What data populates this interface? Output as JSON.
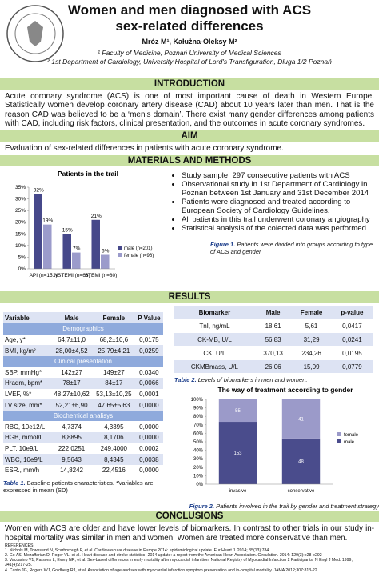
{
  "header": {
    "title_lines": [
      "Women and men diagnosed with ACS",
      "sex-related differences"
    ],
    "authors": "Mróz M¹, Kałużna-Oleksy M²",
    "affiliations": [
      "¹ Faculty of Medicine, Poznań University of Medical Sciences",
      "² 1st Department of Cardiology, University Hospital of Lord's Transfiguration, Długa 1/2 Poznań"
    ]
  },
  "introduction": {
    "heading": "INTRODUCTION",
    "text": "Acute coronary syndrome (ACS) is one of most important cause of death in Western Europe. Statistically women develop coronary artery disease (CAD) about 10 years later than men. That is the reason CAD was believed to be a ‘men's domain’. There exist many gender differences among patients with CAD, including risk factors, clinical presentation, and the outcomes in acute coronary syndromes."
  },
  "aim": {
    "heading": "AIM",
    "text": "Evaluation of sex-related differences in patients with acute coronary syndrome."
  },
  "methods": {
    "heading": "MATERIALS AND METHODS",
    "bullets": [
      "Study sample: 297 consecutive patients with ACS",
      "Observational study in 1st Department of Cardiology in Poznan between 1st January and 31st December 2014",
      "Patients were diagnosed and treated according to European Society of Cardiology Guidelines.",
      "All patients in this trail underwent coronary angiography",
      "Statistical analysis of the colected data was performed"
    ],
    "caption_label": "Figure 1.",
    "caption": "Patients were divided into groups according to type of ACS and gender"
  },
  "results": {
    "heading": "RESULTS",
    "table1": {
      "columns": [
        "Variable",
        "Male",
        "Female",
        "P Value"
      ],
      "rows": [
        [
          "Demographics"
        ],
        [
          "Age, y*",
          "64,7±11,0",
          "68,2±10,6",
          "0,0175"
        ],
        [
          "BMI, kg/m²",
          "28,00±4,52",
          "25,79±4,21",
          "0,0259"
        ],
        [
          "Clinical presentation"
        ],
        [
          "SBP, mmHg*",
          "142±27",
          "149±27",
          "0,0340"
        ],
        [
          "Hradm, bpm*",
          "78±17",
          "84±17",
          "0,0066"
        ],
        [
          "LVEF, %*",
          "48,27±10,62",
          "53,13±10,25",
          "0,0001"
        ],
        [
          "LV size, mm*",
          "52,21±6,90",
          "47,65±5,63",
          "0,0000"
        ],
        [
          "Biochemical analisys"
        ],
        [
          "RBC, 10e12/L",
          "4,7374",
          "4,3395",
          "0,0000"
        ],
        [
          "HGB, mmol/L",
          "8,8895",
          "8,1706",
          "0,0000"
        ],
        [
          "PLT, 10e9/L",
          "222,0251",
          "249,4000",
          "0,0002"
        ],
        [
          "WBC, 10e9/L",
          "9,5643",
          "8,4345",
          "0,0038"
        ],
        [
          "ESR., mm/h",
          "14,8242",
          "22,4516",
          "0,0000"
        ]
      ],
      "caption_label": "Table 1.",
      "caption": "Baseline patients characteristics. *Variables are expressed in mean (SD)"
    },
    "table2": {
      "columns": [
        "Biomarker",
        "Male",
        "Female",
        "p-value"
      ],
      "rows": [
        [
          "TnI, ng/mL",
          "18,61",
          "5,61",
          "0,0417"
        ],
        [
          "CK-MB, U/L",
          "56,83",
          "31,29",
          "0,0241"
        ],
        [
          "CK, U/L",
          "370,13",
          "234,26",
          "0,0195"
        ],
        [
          "CKMBmass, U/L",
          "26,06",
          "15,09",
          "0,0779"
        ]
      ],
      "caption_label": "Table 2.",
      "caption": "Levels of biomarkers in men and women."
    },
    "figure2_caption_label": "Figure 2.",
    "figure2_caption": "Patients involved in the trail by gender and treatment strategy"
  },
  "conclusions": {
    "heading": "CONCLUSIONS",
    "text": "Women with ACS are older and have lower levels of biomarkers. In contrast to other trials in our study in-hospital mortality was similar in men and women. Women are treated more conservative than men.",
    "references_heading": "REFERENCES:",
    "references": [
      "1. Nichols M, Townsend N, Scarborough P, et al. Cardiovascular disease in Europe 2014: epidemiological update. Eur Heart J. 2014; 35(13):784",
      "2. Go AS, Mozaffarian D, Roger VL, et al. Heart disease and stroke statistics--2014 update: a report from the American Heart Association. Circulation. 2014: 129(3):e28-e292",
      "3. Vaccarino V1, Parsons L, Every NR, et al. Sex-based differences in early mortality after myocardial infarction. National Registry of Myocardial Infarction 2 Participants. N Engl J Med. 1999; 341(4):217-25.",
      "4. Canto JG, Rogers WJ, Goldberg RJ, et al. Association of age and sex with myocardial infarction symptom presentation and in-hospital mortality. JAMA 2012;307:813-22"
    ]
  },
  "chart_data": [
    {
      "type": "bar",
      "title": "Patients in the trail",
      "categories": [
        "API (n=151)",
        "NSTEMI (n=66)",
        "STEMI (n=80)"
      ],
      "series": [
        {
          "name": "male (n=201)",
          "color": "#46488a",
          "values": [
            32,
            15,
            21
          ],
          "value_labels": [
            "32%",
            "15%",
            "21%"
          ]
        },
        {
          "name": "female (n=96)",
          "color": "#9b9bcb",
          "values": [
            19,
            7,
            6
          ],
          "value_labels": [
            "19%",
            "7%",
            "6%"
          ]
        }
      ],
      "ylim": [
        0,
        35
      ],
      "yticks": [
        {
          "value": 0,
          "label": "0%"
        },
        {
          "value": 5,
          "label": "5%"
        },
        {
          "value": 10,
          "label": "10%"
        },
        {
          "value": 15,
          "label": "15%"
        },
        {
          "value": 20,
          "label": "20%"
        },
        {
          "value": 25,
          "label": "25%"
        },
        {
          "value": 30,
          "label": "30%"
        },
        {
          "value": 35,
          "label": "35%"
        }
      ],
      "legend": "right",
      "grid": false
    },
    {
      "type": "bar",
      "stacking": "percent",
      "title": "The way of treatment according to gender",
      "categories": [
        "invasive",
        "conservative"
      ],
      "series": [
        {
          "name": "male",
          "color": "#4a4c8c",
          "values": [
            153,
            48
          ]
        },
        {
          "name": "female",
          "color": "#9b9ac9",
          "values": [
            55,
            41
          ]
        }
      ],
      "ylim": [
        0,
        100
      ],
      "yticks": [
        {
          "value": 0,
          "label": "0%"
        },
        {
          "value": 10,
          "label": "10%"
        },
        {
          "value": 20,
          "label": "20%"
        },
        {
          "value": 30,
          "label": "30%"
        },
        {
          "value": 40,
          "label": "40%"
        },
        {
          "value": 50,
          "label": "50%"
        },
        {
          "value": 60,
          "label": "60%"
        },
        {
          "value": 70,
          "label": "70%"
        },
        {
          "value": 80,
          "label": "80%"
        },
        {
          "value": 90,
          "label": "90%"
        },
        {
          "value": 100,
          "label": "100%"
        }
      ],
      "legend": "right",
      "grid": false
    }
  ]
}
